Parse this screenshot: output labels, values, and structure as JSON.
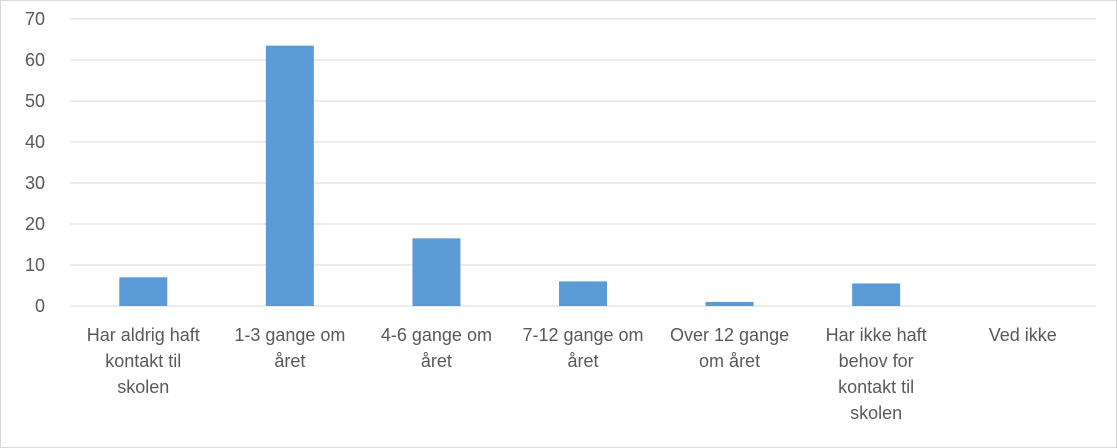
{
  "chart_data": {
    "type": "bar",
    "title": "",
    "xlabel": "",
    "ylabel": "",
    "categories": [
      "Har aldrig haft kontakt til skolen",
      "1-3 gange om året",
      "4-6 gange om året",
      "7-12 gange om året",
      "Over 12 gange om året",
      "Har ikke haft behov for kontakt til skolen",
      "Ved ikke"
    ],
    "category_lines": [
      [
        "Har aldrig haft",
        "kontakt til",
        "skolen"
      ],
      [
        "1-3 gange om",
        "året"
      ],
      [
        "4-6 gange om",
        "året"
      ],
      [
        "7-12 gange om",
        "året"
      ],
      [
        "Over 12 gange",
        "om året"
      ],
      [
        "Har ikke haft",
        "behov for",
        "kontakt til",
        "skolen"
      ],
      [
        "Ved ikke"
      ]
    ],
    "values": [
      7,
      63.5,
      16.5,
      6,
      1,
      5.5,
      0
    ],
    "ylim": [
      0,
      70
    ],
    "yticks": [
      0,
      10,
      20,
      30,
      40,
      50,
      60,
      70
    ],
    "grid": true,
    "legend": "none",
    "colors": {
      "bar": "#5b9bd5",
      "grid": "#d9d9d9",
      "text": "#595959"
    }
  }
}
